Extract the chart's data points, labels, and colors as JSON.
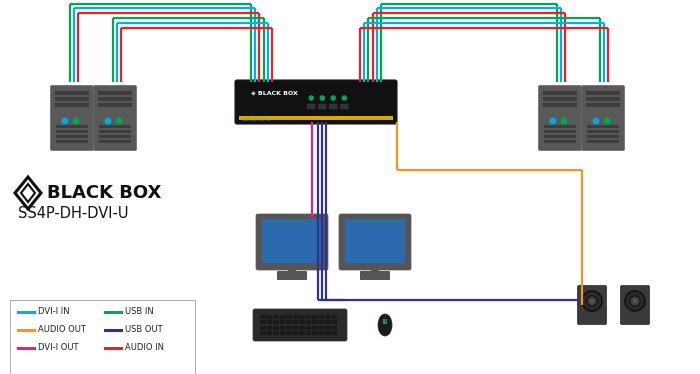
{
  "bg_color": "#ffffff",
  "brand": "BLACK BOX",
  "model": "SS4P-DH-DVI-U",
  "colors": {
    "dvi_in": "#00aeef",
    "usb_in": "#00a651",
    "audio_out": "#f7941d",
    "usb_out": "#2e3192",
    "dvi_out": "#ed1e79",
    "audio_in": "#ed1f24"
  },
  "legend": [
    {
      "label": "DVI-I IN",
      "color": "#00aeef"
    },
    {
      "label": "USB IN",
      "color": "#00a651"
    },
    {
      "label": "AUDIO OUT",
      "color": "#f7941d"
    },
    {
      "label": "USB OUT",
      "color": "#2e3192"
    },
    {
      "label": "DVI-I OUT",
      "color": "#ed1e79"
    },
    {
      "label": "AUDIO IN",
      "color": "#ed1f24"
    }
  ],
  "lw": 1.4
}
